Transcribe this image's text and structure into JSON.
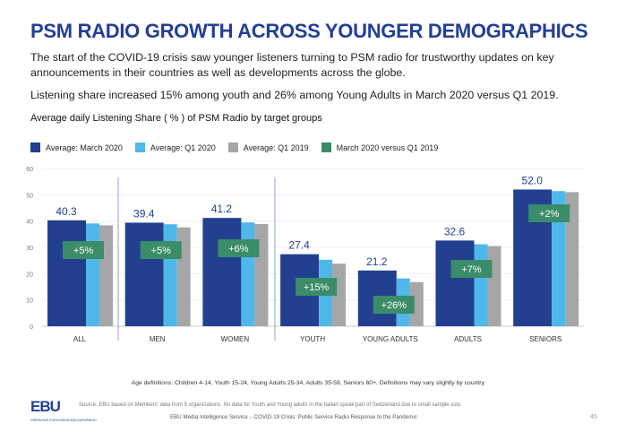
{
  "title": "PSM RADIO GROWTH ACROSS YOUNGER DEMOGRAPHICS",
  "paragraph1": "The start of the COVID-19 crisis saw younger listeners turning to PSM radio for trustworthy updates on key announcements in their countries as well as developments across the globe.",
  "paragraph2": "Listening share increased 15% among youth and 26% among Young Adults in March 2020 versus Q1 2019.",
  "footer": {
    "age_note": "Age definitions: Children 4-14, Youth 15-24, Young Adults 25-34, Adults 35-59, Seniors 60+. Definitions may vary slightly by country.",
    "source": "Source: EBU based on Members' data from 5 organizations. No data for Youth and Young adults in the Italian speak part of Switzerland due to small sample size.",
    "service": "EBU Media Intelligence Service – COVID-19 Crisis: Public Service Radio Response to the Pandemic",
    "page": "45",
    "logo": "EBU",
    "logo_sub": "OPERATING EUROVISION AND EURORADIO"
  },
  "chart_data": {
    "type": "bar",
    "title": "Average daily Listening Share ( % ) of PSM Radio by target groups",
    "categories": [
      "ALL",
      "MEN",
      "WOMEN",
      "YOUTH",
      "YOUNG ADULTS",
      "ADULTS",
      "SENIORS"
    ],
    "series": [
      {
        "name": "Average: March 2020",
        "color": "#22408f",
        "values": [
          40.3,
          39.4,
          41.2,
          27.4,
          21.2,
          32.6,
          52.0
        ]
      },
      {
        "name": "Average: Q1 2020",
        "color": "#4fb8ea",
        "values": [
          39.1,
          38.8,
          39.5,
          25.3,
          18.2,
          31.2,
          51.4
        ]
      },
      {
        "name": "Average: Q1 2019",
        "color": "#a6a6a6",
        "values": [
          38.4,
          37.6,
          38.9,
          23.8,
          16.8,
          30.5,
          51.0
        ]
      }
    ],
    "data_labels": [
      "40.3",
      "39.4",
      "41.2",
      "27.4",
      "21.2",
      "32.6",
      "52.0"
    ],
    "change": {
      "name": "March 2020 versus Q1 2019",
      "color": "#3b8c68",
      "values": [
        "+5%",
        "+5%",
        "+6%",
        "+15%",
        "+26%",
        "+7%",
        "+2%"
      ]
    },
    "ylim": [
      0,
      60
    ],
    "yticks": [
      0,
      10,
      20,
      30,
      40,
      50,
      60
    ],
    "grid": true,
    "legend": "top-left"
  }
}
